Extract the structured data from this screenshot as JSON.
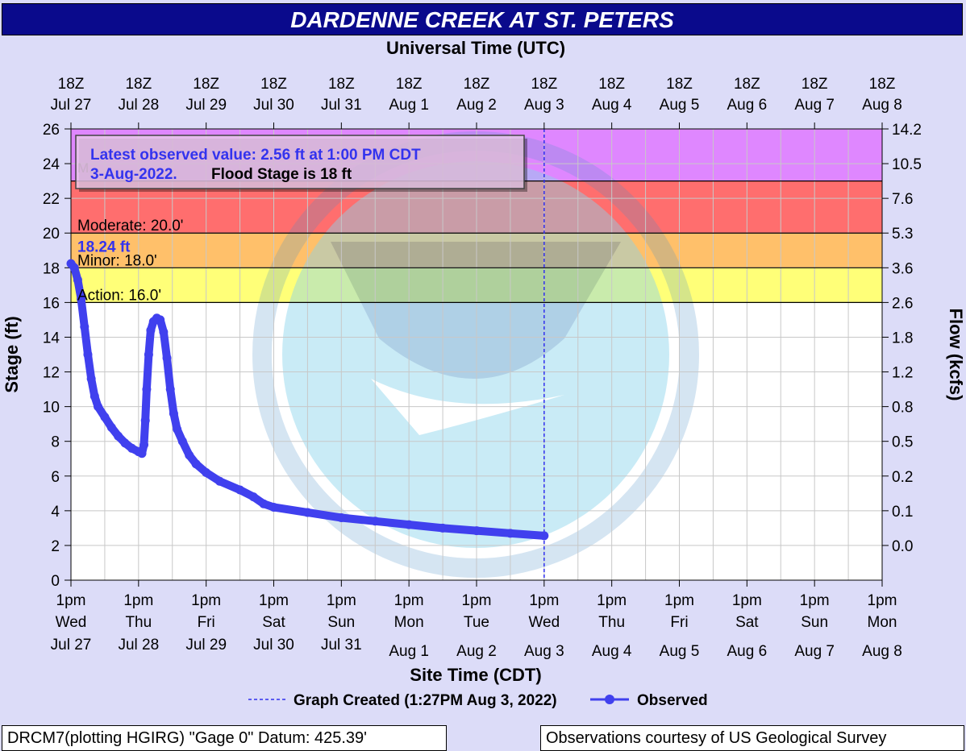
{
  "chart_data": {
    "type": "line",
    "title": "DARDENNE CREEK AT ST. PETERS",
    "top_axis_label": "Universal Time (UTC)",
    "top_ticks": [
      [
        "18Z",
        "Jul 27"
      ],
      [
        "18Z",
        "Jul 28"
      ],
      [
        "18Z",
        "Jul 29"
      ],
      [
        "18Z",
        "Jul 30"
      ],
      [
        "18Z",
        "Jul 31"
      ],
      [
        "18Z",
        "Aug  1"
      ],
      [
        "18Z",
        "Aug  2"
      ],
      [
        "18Z",
        "Aug 3"
      ],
      [
        "18Z",
        "Aug 4"
      ],
      [
        "18Z",
        "Aug 5"
      ],
      [
        "18Z",
        "Aug 6"
      ],
      [
        "18Z",
        "Aug 7"
      ],
      [
        "18Z",
        "Aug 8"
      ]
    ],
    "xlabel": "Site Time (CDT)",
    "bottom_ticks": [
      [
        "1pm",
        "Wed",
        "Jul 27"
      ],
      [
        "1pm",
        "Thu",
        "Jul 28"
      ],
      [
        "1pm",
        "Fri",
        "Jul 29"
      ],
      [
        "1pm",
        "Sat",
        "Jul 30"
      ],
      [
        "1pm",
        "Sun",
        "Jul 31"
      ],
      [
        "1pm",
        "Mon",
        "Aug 1"
      ],
      [
        "1pm",
        "Tue",
        "Aug 2"
      ],
      [
        "1pm",
        "Wed",
        "Aug 3"
      ],
      [
        "1pm",
        "Thu",
        "Aug 4"
      ],
      [
        "1pm",
        "Fri",
        "Aug 5"
      ],
      [
        "1pm",
        "Sat",
        "Aug 6"
      ],
      [
        "1pm",
        "Sun",
        "Aug 7"
      ],
      [
        "1pm",
        "Mon",
        "Aug 8"
      ]
    ],
    "ylabel": "Stage (ft)",
    "ylim": [
      0,
      26
    ],
    "y_ticks": [
      0,
      2,
      4,
      6,
      8,
      10,
      12,
      14,
      16,
      18,
      20,
      22,
      24,
      26
    ],
    "y2label": "Flow (kcfs)",
    "y2_ticks": [
      {
        "stage": 26,
        "label": "14.2"
      },
      {
        "stage": 24,
        "label": "10.5"
      },
      {
        "stage": 22,
        "label": "7.6"
      },
      {
        "stage": 20,
        "label": "5.3"
      },
      {
        "stage": 18,
        "label": "3.6"
      },
      {
        "stage": 16,
        "label": "2.6"
      },
      {
        "stage": 14,
        "label": "1.8"
      },
      {
        "stage": 12,
        "label": "1.2"
      },
      {
        "stage": 10,
        "label": "0.8"
      },
      {
        "stage": 8,
        "label": "0.5"
      },
      {
        "stage": 6,
        "label": "0.2"
      },
      {
        "stage": 4,
        "label": "0.1"
      },
      {
        "stage": 2,
        "label": "0.0"
      }
    ],
    "x_range_days": [
      0,
      12
    ],
    "grid": true,
    "flood_bands": [
      {
        "name": "Major",
        "from": 23,
        "to": 26,
        "color": "#df87ff"
      },
      {
        "name": "Moderate",
        "from": 20,
        "to": 23,
        "color": "#ff6e6e"
      },
      {
        "name": "Minor",
        "from": 18,
        "to": 20,
        "color": "#ffc06a"
      },
      {
        "name": "Action",
        "from": 16,
        "to": 18,
        "color": "#ffff78"
      }
    ],
    "band_labels": [
      {
        "text": "Moderate: 20.0'",
        "stage": 20
      },
      {
        "text": "Minor: 18.0'",
        "stage": 18
      },
      {
        "text": "Action: 16.0'",
        "stage": 16
      }
    ],
    "major_label_partial": "M...",
    "max_label": "18.24 ft",
    "created_day": 7,
    "annotation": {
      "line1": "Latest observed value: 2.56 ft at 1:00 PM CDT",
      "line2_blue": "3-Aug-2022.",
      "line2_black": "Flood Stage is 18 ft"
    },
    "legend": {
      "created": "Graph Created (1:27PM Aug 3, 2022)",
      "observed": "Observed"
    },
    "series": [
      {
        "name": "Observed",
        "color": "#4040ee",
        "points": [
          [
            0.0,
            18.24
          ],
          [
            0.05,
            18.0
          ],
          [
            0.1,
            17.3
          ],
          [
            0.15,
            16.2
          ],
          [
            0.2,
            14.6
          ],
          [
            0.25,
            13.0
          ],
          [
            0.3,
            11.6
          ],
          [
            0.35,
            10.6
          ],
          [
            0.4,
            10.0
          ],
          [
            0.5,
            9.4
          ],
          [
            0.6,
            8.8
          ],
          [
            0.7,
            8.3
          ],
          [
            0.8,
            7.9
          ],
          [
            0.9,
            7.6
          ],
          [
            1.0,
            7.4
          ],
          [
            1.05,
            7.3
          ],
          [
            1.08,
            7.8
          ],
          [
            1.1,
            9.2
          ],
          [
            1.12,
            11.0
          ],
          [
            1.15,
            13.0
          ],
          [
            1.18,
            14.4
          ],
          [
            1.22,
            14.9
          ],
          [
            1.27,
            15.1
          ],
          [
            1.32,
            15.0
          ],
          [
            1.37,
            14.3
          ],
          [
            1.42,
            12.8
          ],
          [
            1.47,
            11.0
          ],
          [
            1.52,
            9.6
          ],
          [
            1.57,
            8.7
          ],
          [
            1.65,
            8.0
          ],
          [
            1.75,
            7.2
          ],
          [
            1.85,
            6.7
          ],
          [
            2.0,
            6.2
          ],
          [
            2.2,
            5.7
          ],
          [
            2.5,
            5.2
          ],
          [
            2.7,
            4.8
          ],
          [
            2.85,
            4.4
          ],
          [
            3.0,
            4.2
          ],
          [
            3.5,
            3.9
          ],
          [
            4.0,
            3.6
          ],
          [
            4.5,
            3.4
          ],
          [
            5.0,
            3.2
          ],
          [
            5.5,
            3.0
          ],
          [
            6.0,
            2.85
          ],
          [
            6.5,
            2.7
          ],
          [
            7.0,
            2.56
          ]
        ]
      }
    ]
  },
  "footer": {
    "left": "DRCM7(plotting HGIRG) \"Gage 0\" Datum: 425.39'",
    "right": "Observations courtesy of US Geological Survey"
  }
}
